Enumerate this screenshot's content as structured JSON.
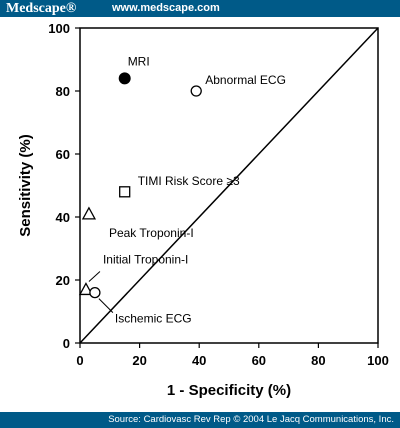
{
  "header": {
    "brand": "Medscape®",
    "site": "www.medscape.com"
  },
  "footer": {
    "source": "Source: Cardiovasc Rev Rep © 2004 Le Jacq Communications, Inc."
  },
  "chart_data": {
    "type": "scatter",
    "xlabel": "1 - Specificity (%)",
    "ylabel": "Sensitivity (%)",
    "xlim": [
      0,
      100
    ],
    "ylim": [
      0,
      100
    ],
    "xticks": [
      "0",
      "20",
      "40",
      "60",
      "80",
      "100"
    ],
    "yticks": [
      "0",
      "20",
      "40",
      "60",
      "80",
      "100"
    ],
    "grid": false,
    "reference_line": {
      "from": [
        0,
        0
      ],
      "to": [
        100,
        100
      ]
    },
    "points": [
      {
        "label": "MRI",
        "x": 15,
        "y": 84,
        "marker": "filled-circle"
      },
      {
        "label": "Abnormal ECG",
        "x": 39,
        "y": 80,
        "marker": "open-circle"
      },
      {
        "label": "TIMI Risk Score ≥3",
        "x": 15,
        "y": 48,
        "marker": "open-square"
      },
      {
        "label": "Peak Troponin-I",
        "x": 3,
        "y": 41,
        "marker": "open-triangle"
      },
      {
        "label": "Initial Troponin-I",
        "x": 2,
        "y": 17,
        "marker": "open-triangle"
      },
      {
        "label": "Ischemic ECG",
        "x": 5,
        "y": 16,
        "marker": "open-circle"
      }
    ]
  }
}
